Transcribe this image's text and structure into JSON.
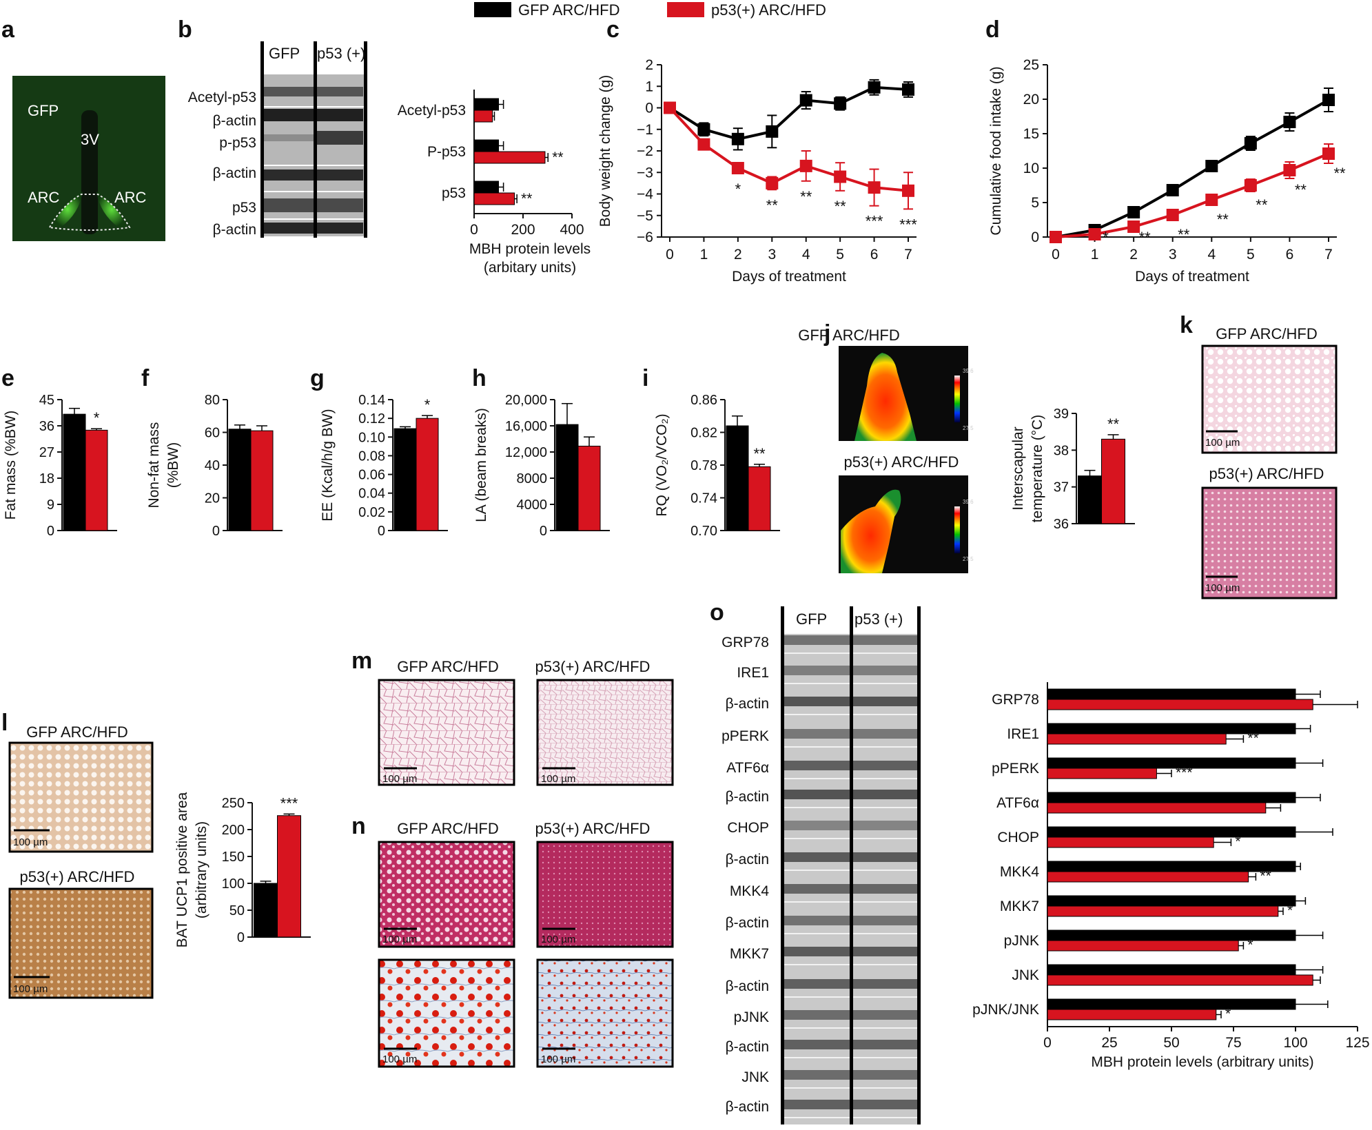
{
  "colors": {
    "gfp": "#000000",
    "p53": "#d7141f",
    "axis": "#111111"
  },
  "legend": {
    "gfp": "GFP ARC/HFD",
    "p53": "p53(+) ARC/HFD"
  },
  "micro": {
    "scale_bar": "100 µm",
    "a": {
      "gfp": "GFP",
      "ventricle": "3V",
      "arc_left": "ARC",
      "arc_right": "ARC"
    },
    "j_scale_top": "39.6",
    "j_scale_bottom": "27.5"
  },
  "blot_b": {
    "header_gfp": "GFP",
    "header_p53": "p53 (+)",
    "labels": [
      "Acetyl-p53",
      "β-actin",
      "p-p53",
      "β-actin",
      "p53",
      "β-actin"
    ]
  },
  "blot_o": {
    "header_gfp": "GFP",
    "header_p53": "p53 (+)",
    "labels": [
      "GRP78",
      "IRE1",
      "β-actin",
      "pPERK",
      "ATF6α",
      "β-actin",
      "CHOP",
      "β-actin",
      "MKK4",
      "β-actin",
      "MKK7",
      "β-actin",
      "pJNK",
      "β-actin",
      "JNK",
      "β-actin"
    ]
  },
  "chart_data": [
    {
      "id": "b",
      "type": "bar",
      "orientation": "horizontal",
      "categories": [
        "Acetyl-p53",
        "P-p53",
        "p53"
      ],
      "series": [
        {
          "name": "GFP ARC/HFD",
          "values": [
            100,
            100,
            100
          ],
          "errors": [
            20,
            20,
            20
          ]
        },
        {
          "name": "p53(+) ARC/HFD",
          "values": [
            75,
            290,
            165
          ],
          "errors": [
            8,
            12,
            10
          ]
        }
      ],
      "sig": [
        "",
        "**",
        "**"
      ],
      "xlabel": "MBH protein levels (arbitary units)",
      "xlim": [
        0,
        400
      ],
      "xticks": [
        "0",
        "200",
        "400"
      ]
    },
    {
      "id": "c",
      "type": "line",
      "x": [
        0,
        1,
        2,
        3,
        4,
        5,
        6,
        7
      ],
      "series": [
        {
          "name": "GFP ARC/HFD",
          "values": [
            0,
            -1.0,
            -1.45,
            -1.1,
            0.35,
            0.2,
            0.95,
            0.85
          ],
          "errors": [
            0,
            0.3,
            0.5,
            0.75,
            0.4,
            0.3,
            0.35,
            0.35
          ]
        },
        {
          "name": "p53(+) ARC/HFD",
          "values": [
            0,
            -1.7,
            -2.8,
            -3.5,
            -2.7,
            -3.2,
            -3.7,
            -3.85
          ],
          "errors": [
            0,
            0.2,
            0.25,
            0.3,
            0.7,
            0.65,
            0.85,
            0.85
          ]
        }
      ],
      "sig": [
        "",
        "",
        "*",
        "**",
        "**",
        "**",
        "***",
        "***"
      ],
      "xlabel": "Days of treatment",
      "ylabel": "Body weight change (g)",
      "ylim": [
        -6,
        2
      ],
      "yticks": [
        "2",
        "1",
        "0",
        "−1",
        "−2",
        "−3",
        "−4",
        "−5",
        "−6"
      ],
      "xticks": [
        "0",
        "1",
        "2",
        "3",
        "4",
        "5",
        "6",
        "7"
      ]
    },
    {
      "id": "d",
      "type": "line",
      "x": [
        0,
        1,
        2,
        3,
        4,
        5,
        6,
        7
      ],
      "series": [
        {
          "name": "GFP ARC/HFD",
          "values": [
            0,
            1.0,
            3.6,
            6.8,
            10.3,
            13.6,
            16.7,
            19.9
          ],
          "errors": [
            0,
            0.3,
            0.5,
            0.6,
            0.8,
            1.0,
            1.3,
            1.7
          ]
        },
        {
          "name": "p53(+) ARC/HFD",
          "values": [
            0,
            0.4,
            1.5,
            3.2,
            5.4,
            7.5,
            9.7,
            12.1
          ],
          "errors": [
            0,
            0.2,
            0.3,
            0.4,
            0.7,
            0.9,
            1.2,
            1.4
          ]
        }
      ],
      "sig": [
        "",
        "*",
        "**",
        "**",
        "**",
        "**",
        "**",
        "**"
      ],
      "xlabel": "Days of treatment",
      "ylabel": "Cumulative food intake (g)",
      "ylim": [
        0,
        25
      ],
      "yticks": [
        "25",
        "20",
        "15",
        "10",
        "5",
        "0"
      ],
      "xticks": [
        "0",
        "1",
        "2",
        "3",
        "4",
        "5",
        "6",
        "7"
      ]
    },
    {
      "id": "e",
      "type": "bar",
      "values": [
        40,
        34.5
      ],
      "errors": [
        2,
        0.5
      ],
      "sig": "*",
      "ylabel": "Fat mass (%BW)",
      "ylim": [
        0,
        45
      ],
      "yticks": [
        "45",
        "36",
        "27",
        "18",
        "9",
        "0"
      ]
    },
    {
      "id": "f",
      "type": "bar",
      "values": [
        62,
        61
      ],
      "errors": [
        2.5,
        3
      ],
      "sig": "",
      "ylabel": "Non-fat mass (%BW)",
      "ylim": [
        0,
        80
      ],
      "yticks": [
        "80",
        "60",
        "40",
        "20",
        "0"
      ]
    },
    {
      "id": "g",
      "type": "bar",
      "values": [
        0.109,
        0.12
      ],
      "errors": [
        0.002,
        0.003
      ],
      "sig": "*",
      "ylabel": "EE (Kcal/h/g BW)",
      "ylim": [
        0,
        0.14
      ],
      "yticks": [
        "0.14",
        "0.12",
        "0.10",
        "0.08",
        "0.06",
        "0.04",
        "0.02",
        "0"
      ]
    },
    {
      "id": "h",
      "type": "bar",
      "values": [
        16200,
        12900
      ],
      "errors": [
        3200,
        1400
      ],
      "sig": "",
      "ylabel": "LA (beam breaks)",
      "ylim": [
        0,
        20000
      ],
      "yticks": [
        "20,000",
        "16,000",
        "12,000",
        "8000",
        "4000",
        "0"
      ]
    },
    {
      "id": "i",
      "type": "bar",
      "values": [
        0.828,
        0.778
      ],
      "errors": [
        0.012,
        0.003
      ],
      "sig": "**",
      "ylabel": "RQ (VO₂/VCO₂)",
      "ylim": [
        0.7,
        0.86
      ],
      "yticks": [
        "0.86",
        "0.82",
        "0.78",
        "0.74",
        "0.70"
      ]
    },
    {
      "id": "j",
      "type": "bar",
      "values": [
        37.3,
        38.3
      ],
      "errors": [
        0.15,
        0.12
      ],
      "sig": "**",
      "ylabel": "Interscapular temperature (°C)",
      "ylim": [
        36,
        39
      ],
      "yticks": [
        "39",
        "38",
        "37",
        "36"
      ]
    },
    {
      "id": "l",
      "type": "bar",
      "values": [
        100,
        226
      ],
      "errors": [
        4,
        3
      ],
      "sig": "***",
      "ylabel": "BAT UCP1 positive area (arbitrary units)",
      "ylim": [
        0,
        250
      ],
      "yticks": [
        "250",
        "200",
        "150",
        "100",
        "50",
        "0"
      ]
    },
    {
      "id": "o",
      "type": "bar",
      "orientation": "horizontal",
      "categories": [
        "GRP78",
        "IRE1",
        "pPERK",
        "ATF6α",
        "CHOP",
        "MKK4",
        "MKK7",
        "pJNK",
        "JNK",
        "pJNK/JNK"
      ],
      "series": [
        {
          "name": "GFP ARC/HFD",
          "values": [
            100,
            100,
            100,
            100,
            100,
            100,
            100,
            100,
            100,
            100
          ],
          "errors": [
            10,
            6,
            11,
            10,
            15,
            2,
            4,
            11,
            11,
            13
          ]
        },
        {
          "name": "p53(+) ARC/HFD",
          "values": [
            107,
            72,
            44,
            88,
            67,
            81,
            93,
            77,
            107,
            68
          ],
          "errors": [
            18,
            7,
            6,
            6,
            7,
            3,
            2,
            2,
            3,
            2
          ]
        }
      ],
      "sig": [
        "",
        "**",
        "***",
        "",
        "*",
        "**",
        "*",
        "*",
        "",
        "*"
      ],
      "xlabel": "MBH protein levels (arbitrary units)",
      "xlim": [
        0,
        125
      ],
      "xticks": [
        "0",
        "25",
        "50",
        "75",
        "100",
        "125"
      ]
    }
  ],
  "panel_letters": [
    "a",
    "b",
    "c",
    "d",
    "e",
    "f",
    "g",
    "h",
    "i",
    "j",
    "k",
    "l",
    "m",
    "n",
    "o"
  ]
}
